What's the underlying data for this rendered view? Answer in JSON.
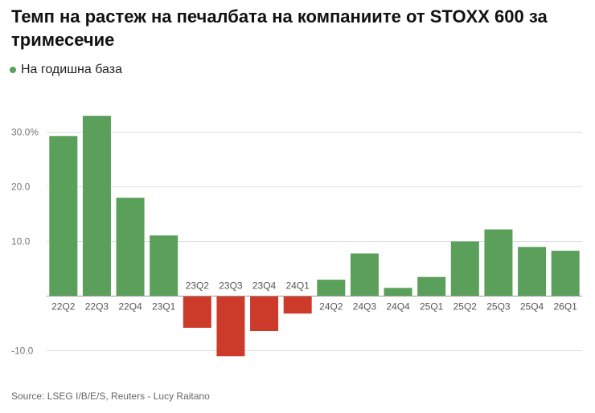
{
  "title": "Темп на растеж на печалбата на компаниите от STOXX 600 за тримесечие",
  "legend": {
    "label": "На годишна база",
    "color": "#5aa05a"
  },
  "source": "Source: LSEG I/B/E/S, Reuters - Lucy Raitano",
  "colors": {
    "positive": "#5aa05a",
    "negative": "#cc3a2a",
    "grid": "#dddddd",
    "axis_text": "#777777",
    "tick_text": "#555555"
  },
  "chart_data": {
    "type": "bar",
    "title": "Темп на растеж на печалбата на компаниите от STOXX 600 за тримесечие",
    "xlabel": "",
    "ylabel": "",
    "categories": [
      "22Q2",
      "22Q3",
      "22Q4",
      "23Q1",
      "23Q2",
      "23Q3",
      "23Q4",
      "24Q1",
      "24Q2",
      "24Q3",
      "24Q4",
      "25Q1",
      "25Q2",
      "25Q3",
      "25Q4",
      "26Q1"
    ],
    "series": [
      {
        "name": "На годишна база",
        "values": [
          29.3,
          33.0,
          18.0,
          11.1,
          -5.8,
          -11.0,
          -6.4,
          -3.2,
          3.0,
          7.8,
          1.5,
          3.5,
          10.0,
          12.2,
          9.0,
          8.3
        ]
      }
    ],
    "ylim": [
      -12,
      34
    ],
    "yticks": [
      30,
      20,
      10,
      -10
    ],
    "ytick_labels": [
      "30.0%",
      "20.0",
      "10.0",
      "-10.0"
    ],
    "grid": true
  }
}
